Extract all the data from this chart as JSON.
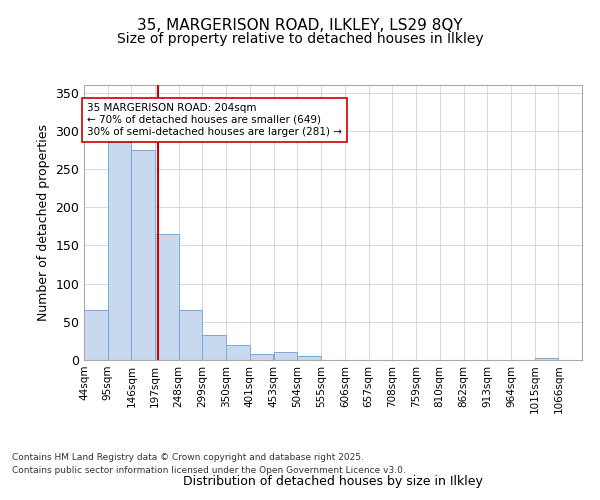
{
  "title_line1": "35, MARGERISON ROAD, ILKLEY, LS29 8QY",
  "title_line2": "Size of property relative to detached houses in Ilkley",
  "xlabel": "Distribution of detached houses by size in Ilkley",
  "ylabel": "Number of detached properties",
  "bin_labels": [
    "44sqm",
    "95sqm",
    "146sqm",
    "197sqm",
    "248sqm",
    "299sqm",
    "350sqm",
    "401sqm",
    "453sqm",
    "504sqm",
    "555sqm",
    "606sqm",
    "657sqm",
    "708sqm",
    "759sqm",
    "810sqm",
    "862sqm",
    "913sqm",
    "964sqm",
    "1015sqm",
    "1066sqm"
  ],
  "bin_edges": [
    44,
    95,
    146,
    197,
    248,
    299,
    350,
    401,
    453,
    504,
    555,
    606,
    657,
    708,
    759,
    810,
    862,
    913,
    964,
    1015,
    1066
  ],
  "bar_heights": [
    65,
    285,
    275,
    165,
    65,
    33,
    20,
    8,
    10,
    5,
    0,
    0,
    0,
    0,
    0,
    0,
    0,
    0,
    0,
    3
  ],
  "bar_color": "#c8d8ef",
  "bar_edge_color": "#7ca8d0",
  "property_size": 204,
  "red_line_color": "#cc0000",
  "annotation_line1": "35 MARGERISON ROAD: 204sqm",
  "annotation_line2": "← 70% of detached houses are smaller (649)",
  "annotation_line3": "30% of semi-detached houses are larger (281) →",
  "annotation_box_color": "#ffffff",
  "annotation_box_edge_color": "#cc0000",
  "ylim": [
    0,
    360
  ],
  "yticks": [
    0,
    50,
    100,
    150,
    200,
    250,
    300,
    350
  ],
  "background_color": "#ffffff",
  "plot_background_color": "#ffffff",
  "grid_color": "#d0d8e8",
  "footer_line1": "Contains HM Land Registry data © Crown copyright and database right 2025.",
  "footer_line2": "Contains public sector information licensed under the Open Government Licence v3.0."
}
